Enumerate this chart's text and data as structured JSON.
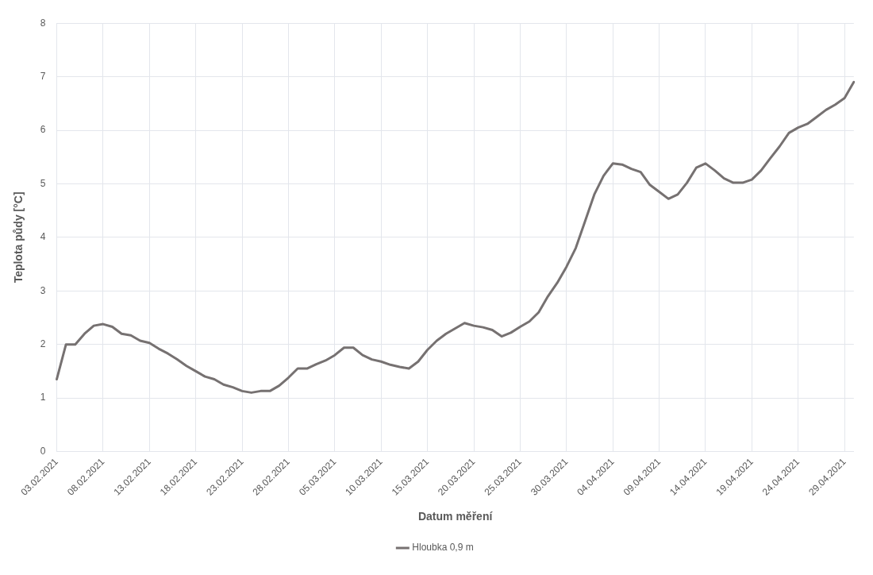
{
  "chart_data": {
    "type": "line",
    "xlabel": "Datum měření",
    "ylabel": "Teplota půdy [°C]",
    "categories": [
      "03.02.2021",
      null,
      null,
      null,
      null,
      "08.02.2021",
      null,
      null,
      null,
      null,
      "13.02.2021",
      null,
      null,
      null,
      null,
      "18.02.2021",
      null,
      null,
      null,
      null,
      "23.02.2021",
      null,
      null,
      null,
      null,
      "28.02.2021",
      null,
      null,
      null,
      null,
      "05.03.2021",
      null,
      null,
      null,
      null,
      "10.03.2021",
      null,
      null,
      null,
      null,
      "15.03.2021",
      null,
      null,
      null,
      null,
      "20.03.2021",
      null,
      null,
      null,
      null,
      "25.03.2021",
      null,
      null,
      null,
      null,
      "30.03.2021",
      null,
      null,
      null,
      null,
      "04.04.2021",
      null,
      null,
      null,
      null,
      "09.04.2021",
      null,
      null,
      null,
      null,
      "14.04.2021",
      null,
      null,
      null,
      null,
      "19.04.2021",
      null,
      null,
      null,
      null,
      "24.04.2021",
      null,
      null,
      null,
      null,
      "29.04.2021",
      null
    ],
    "series": [
      {
        "name": "Hloubka 0,9 m",
        "color": "#767171",
        "values": [
          1.35,
          2.0,
          2.0,
          2.2,
          2.35,
          2.38,
          2.33,
          2.2,
          2.17,
          2.07,
          2.03,
          1.92,
          1.83,
          1.72,
          1.6,
          1.5,
          1.4,
          1.35,
          1.25,
          1.2,
          1.13,
          1.1,
          1.13,
          1.13,
          1.23,
          1.38,
          1.55,
          1.55,
          1.63,
          1.7,
          1.8,
          1.94,
          1.94,
          1.8,
          1.72,
          1.68,
          1.62,
          1.58,
          1.55,
          1.68,
          1.9,
          2.07,
          2.2,
          2.3,
          2.4,
          2.35,
          2.32,
          2.27,
          2.15,
          2.22,
          2.33,
          2.43,
          2.6,
          2.9,
          3.15,
          3.45,
          3.8,
          4.3,
          4.8,
          5.15,
          5.38,
          5.36,
          5.28,
          5.22,
          4.98,
          4.85,
          4.72,
          4.8,
          5.02,
          5.3,
          5.38,
          5.25,
          5.1,
          5.02,
          5.02,
          5.08,
          5.25,
          5.48,
          5.7,
          5.95,
          6.05,
          6.12,
          6.25,
          6.38,
          6.48,
          6.6,
          6.9
        ]
      }
    ],
    "ylim": [
      0,
      8
    ],
    "yticks": [
      0,
      1,
      2,
      3,
      4,
      5,
      6,
      7,
      8
    ],
    "grid": true,
    "legend": "bottom",
    "marker": "none",
    "line_style": "solid"
  }
}
